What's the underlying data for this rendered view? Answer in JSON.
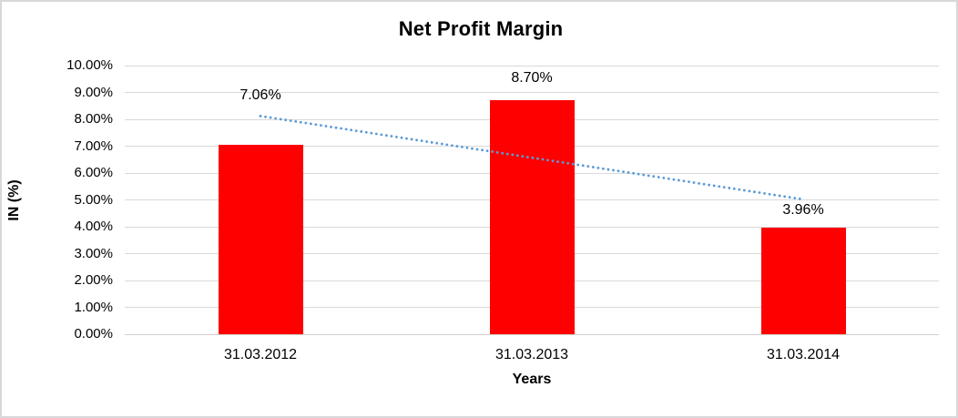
{
  "frame": {
    "background": "#FFFFFF",
    "border_color": "#D8D8DB"
  },
  "chart_data": {
    "type": "bar",
    "title": "Net Profit Margin",
    "xlabel": "Years",
    "ylabel": "IN (%)",
    "categories": [
      "31.03.2012",
      "31.03.2013",
      "31.03.2014"
    ],
    "series": [
      {
        "name": "Net Profit Margin",
        "values": [
          7.06,
          8.7,
          3.96
        ]
      }
    ],
    "data_labels": [
      "7.06%",
      "8.70%",
      "3.96%"
    ],
    "y_ticks": [
      "10.00%",
      "9.00%",
      "8.00%",
      "7.00%",
      "6.00%",
      "5.00%",
      "4.00%",
      "3.00%",
      "2.00%",
      "1.00%",
      "0.00%"
    ],
    "ylim": [
      0,
      10
    ],
    "grid": true,
    "legend": "none",
    "bar_color": "#FF0000",
    "gridline_color": "#D9D9D9",
    "trendline": {
      "type": "linear",
      "style": "dotted",
      "color": "#5B9BD5",
      "start_value": 8.12,
      "end_value": 5.02
    }
  }
}
